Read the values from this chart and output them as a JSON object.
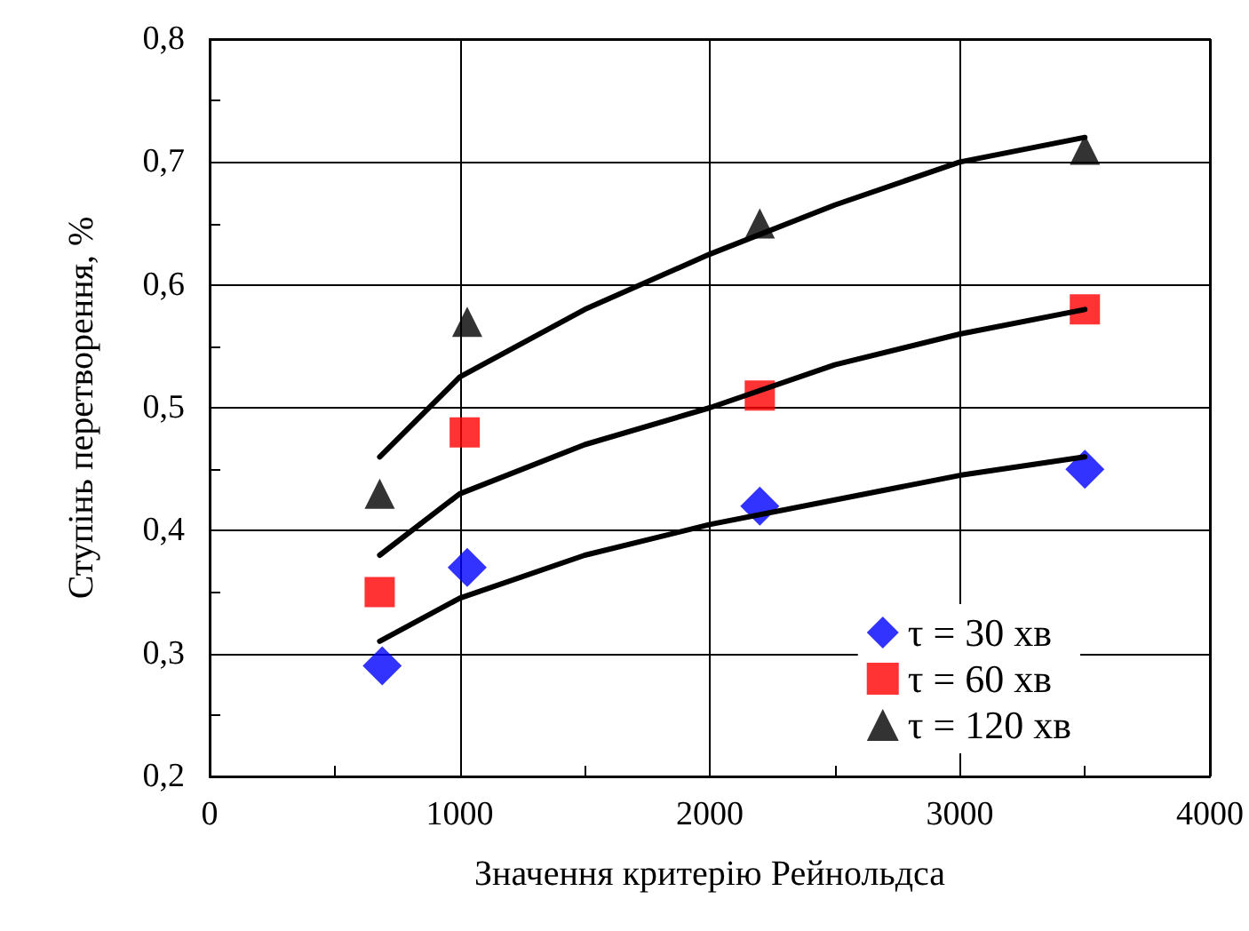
{
  "chart_data": {
    "type": "scatter",
    "xlabel": "Значення критерію Рейнольдса",
    "ylabel": "Ступінь перетворення, %",
    "xlim": [
      0,
      4000
    ],
    "ylim": [
      0.2,
      0.8
    ],
    "xticks": [
      0,
      {
        "value": 500,
        "label": null
      },
      1000,
      {
        "value": 1500,
        "label": null
      },
      2000,
      {
        "value": 2500,
        "label": null
      },
      3000,
      {
        "value": 3500,
        "label": null
      },
      4000
    ],
    "yticks": [
      {
        "value": 0.2,
        "label": "0,2"
      },
      {
        "value": 0.25,
        "label": null
      },
      {
        "value": 0.3,
        "label": "0,3"
      },
      {
        "value": 0.35,
        "label": null
      },
      {
        "value": 0.4,
        "label": "0,4"
      },
      {
        "value": 0.45,
        "label": null
      },
      {
        "value": 0.5,
        "label": "0,5"
      },
      {
        "value": 0.55,
        "label": null
      },
      {
        "value": 0.6,
        "label": "0,6"
      },
      {
        "value": 0.65,
        "label": null
      },
      {
        "value": 0.7,
        "label": "0,7"
      },
      {
        "value": 0.75,
        "label": null
      },
      {
        "value": 0.8,
        "label": "0,8"
      }
    ],
    "grid": true,
    "legend": "bottom right",
    "series": [
      {
        "name": "τ = 30 хв",
        "color": "#0000ff",
        "marker": "diamond",
        "x": [
          690,
          1030,
          2200,
          3500
        ],
        "values": [
          0.29,
          0.37,
          0.42,
          0.45
        ]
      },
      {
        "name": "τ = 60 хв",
        "color": "#ff0000",
        "marker": "square",
        "x": [
          680,
          1020,
          2200,
          3500
        ],
        "values": [
          0.35,
          0.48,
          0.51,
          0.58
        ]
      },
      {
        "name": "τ = 120 хв",
        "color": "#000000",
        "marker": "triangle",
        "x": [
          680,
          1030,
          2200,
          3500
        ],
        "values": [
          0.43,
          0.57,
          0.65,
          0.71
        ]
      },
      {
        "type": "line",
        "color": "#000000",
        "marker": "none",
        "line_style": "solid",
        "x": [
          680,
          1000,
          1500,
          2000,
          2500,
          3000,
          3500
        ],
        "values": [
          0.31,
          0.345,
          0.38,
          0.405,
          0.425,
          0.445,
          0.46
        ]
      },
      {
        "type": "line",
        "color": "#000000",
        "marker": "none",
        "line_style": "solid",
        "x": [
          680,
          1000,
          1500,
          2000,
          2500,
          3000,
          3500
        ],
        "values": [
          0.38,
          0.43,
          0.47,
          0.5,
          0.535,
          0.56,
          0.58
        ]
      },
      {
        "type": "line",
        "color": "#000000",
        "marker": "none",
        "line_style": "solid",
        "x": [
          680,
          1000,
          1500,
          2000,
          2500,
          3000,
          3500
        ],
        "values": [
          0.46,
          0.525,
          0.58,
          0.625,
          0.665,
          0.7,
          0.72
        ]
      }
    ]
  }
}
